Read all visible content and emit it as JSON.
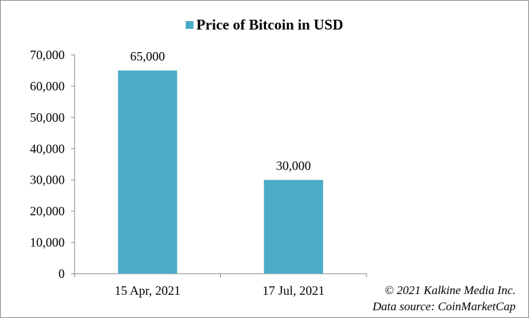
{
  "chart_data": {
    "type": "bar",
    "categories": [
      "15 Apr, 2021",
      "17 Jul, 2021"
    ],
    "series": [
      {
        "name": "Price of Bitcoin in USD",
        "values": [
          65000,
          30000
        ],
        "color": "#4BACC6"
      }
    ],
    "data_labels": [
      "65,000",
      "30,000"
    ],
    "ylim": [
      0,
      70000
    ],
    "y_ticks": [
      "0",
      "10,000",
      "20,000",
      "30,000",
      "40,000",
      "50,000",
      "60,000",
      "70,000"
    ],
    "legend_position": "top",
    "grid": false,
    "xlabel": "",
    "ylabel": ""
  },
  "credits": {
    "copyright": "© 2021 Kalkine Media Inc.",
    "source": "Data source:  CoinMarketCap"
  }
}
